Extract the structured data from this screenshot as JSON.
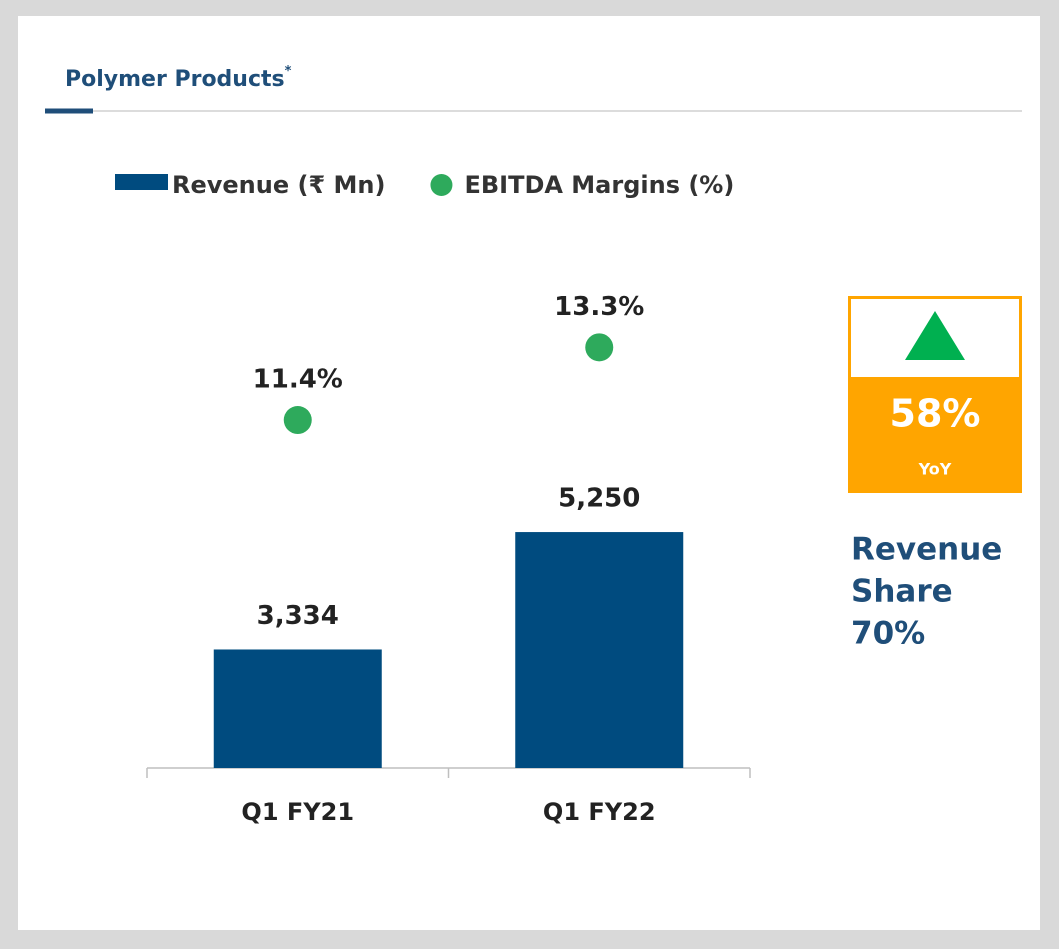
{
  "chart_data": {
    "type": "bar",
    "title": "Polymer Products",
    "title_mark": "*",
    "categories": [
      "Q1 FY21",
      "Q1 FY22"
    ],
    "series": [
      {
        "name": "Revenue (₹ Mn)",
        "type": "bar",
        "color": "#004b7f",
        "values": [
          3334,
          5250
        ],
        "value_labels": [
          "3,334",
          "5,250"
        ]
      },
      {
        "name": "EBITDA Margins (%)",
        "type": "scatter",
        "axis": "y2",
        "color": "#2eaa5c",
        "values": [
          11.4,
          13.3
        ],
        "value_labels": [
          "11.4%",
          "13.3%"
        ]
      }
    ],
    "ylim": [
      1400,
      9200
    ],
    "y2lim": [
      2.3,
      14.8
    ],
    "annotations": {
      "growth": "58%",
      "growth_period": "YoY",
      "share": [
        "Revenue",
        "Share",
        "70%"
      ]
    }
  }
}
